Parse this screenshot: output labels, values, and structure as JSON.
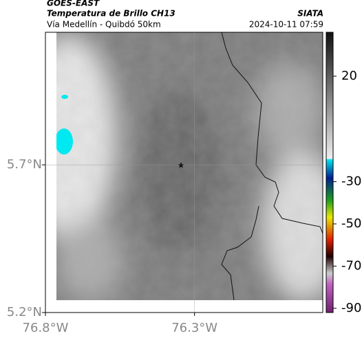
{
  "header": {
    "satellite": "GOES-EAST",
    "product": "Temperatura de Brillo CH13",
    "region": "Vía Medellín - Quibdó 50km",
    "source": "SIATA",
    "datetime": "2024-10-11 07:59"
  },
  "map": {
    "xlim": [
      -76.8,
      -75.87
    ],
    "ylim": [
      5.2,
      6.149
    ],
    "xticks": [
      {
        "value": -76.8,
        "label": "76.8°W"
      },
      {
        "value": -76.3,
        "label": "76.3°W"
      }
    ],
    "yticks": [
      {
        "value": 5.2,
        "label": "5.2°N"
      },
      {
        "value": 5.7,
        "label": "5.7°N"
      }
    ],
    "grid": true
  },
  "colorbar": {
    "lim": [
      -92,
      40.8
    ],
    "ticks": [
      20,
      -30,
      -50,
      -70,
      -90
    ]
  }
}
